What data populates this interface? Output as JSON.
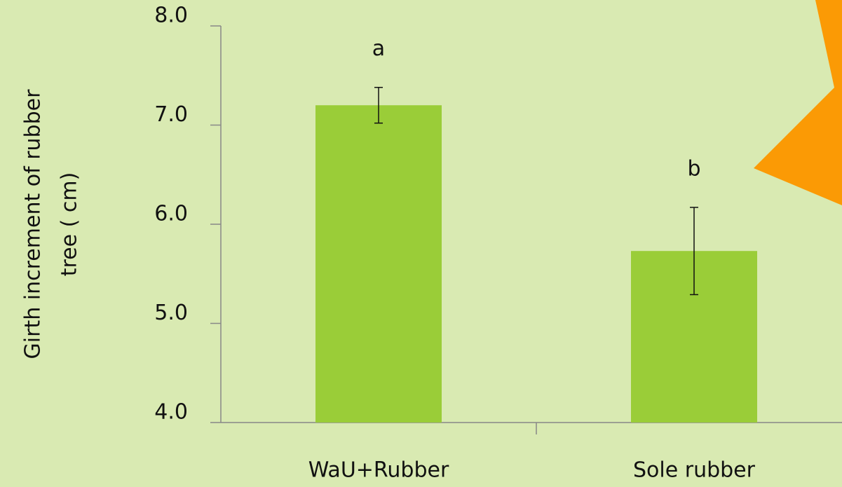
{
  "chart_data": {
    "type": "bar",
    "ylabel": [
      "Girth increment of rubber",
      "tree ( cm)"
    ],
    "categories": [
      "WaU+Rubber",
      "Sole rubber"
    ],
    "values": [
      7.2,
      5.73
    ],
    "errors": [
      0.18,
      0.44
    ],
    "annotations": [
      "a",
      "b"
    ],
    "color": "#9acd38",
    "ylim": [
      4,
      8
    ],
    "yticks": [
      {
        "value": 4,
        "label": "4.0"
      },
      {
        "value": 5,
        "label": "5.0"
      },
      {
        "value": 6,
        "label": "6.0"
      },
      {
        "value": 7,
        "label": "7.0"
      },
      {
        "value": 8,
        "label": "8.0"
      }
    ]
  }
}
